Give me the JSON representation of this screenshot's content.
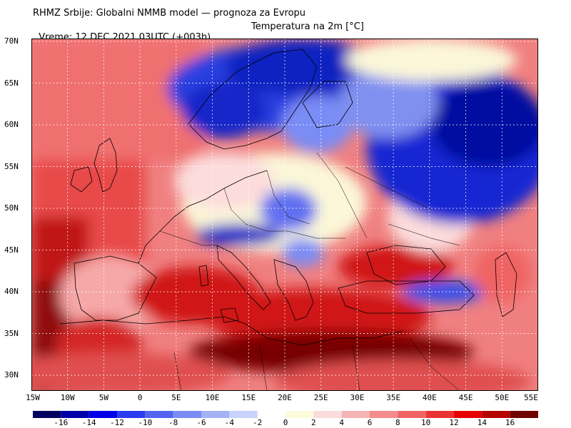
{
  "header": {
    "line1": "RHMZ Srbije: Globalni NMMB model — prognoza za Evropu",
    "line2_left": "Vreme: 12 DEC 2021 03UTC (+003h)",
    "line2_right": "Temperatura na 2m [°C]"
  },
  "map": {
    "lat_labels": [
      "70N",
      "65N",
      "60N",
      "55N",
      "50N",
      "45N",
      "40N",
      "35N",
      "30N"
    ],
    "lon_labels": [
      "15W",
      "10W",
      "5W",
      "0",
      "5E",
      "10E",
      "15E",
      "20E",
      "25E",
      "30E",
      "35E",
      "40E",
      "45E",
      "50E",
      "55E"
    ]
  },
  "colorbar": {
    "labels": [
      "-16",
      "-14",
      "-12",
      "-10",
      "-8",
      "-6",
      "-4",
      "-2",
      "0",
      "2",
      "4",
      "6",
      "8",
      "10",
      "12",
      "14",
      "16"
    ],
    "colors": [
      "#000060",
      "#0000a8",
      "#0000e6",
      "#2a3cf0",
      "#5264f0",
      "#7a8cf5",
      "#a3b1f5",
      "#c8d2fa",
      "#fcfcdc",
      "#fadcdc",
      "#f5b4b4",
      "#f58c8c",
      "#f06464",
      "#eb3232",
      "#e60000",
      "#b40000",
      "#6e0000"
    ]
  },
  "colors": {
    "warm": "#e03030",
    "hot": "#780000",
    "cold": "#1428d2",
    "neutral": "#fbf7d8",
    "land_line": "#000000"
  }
}
